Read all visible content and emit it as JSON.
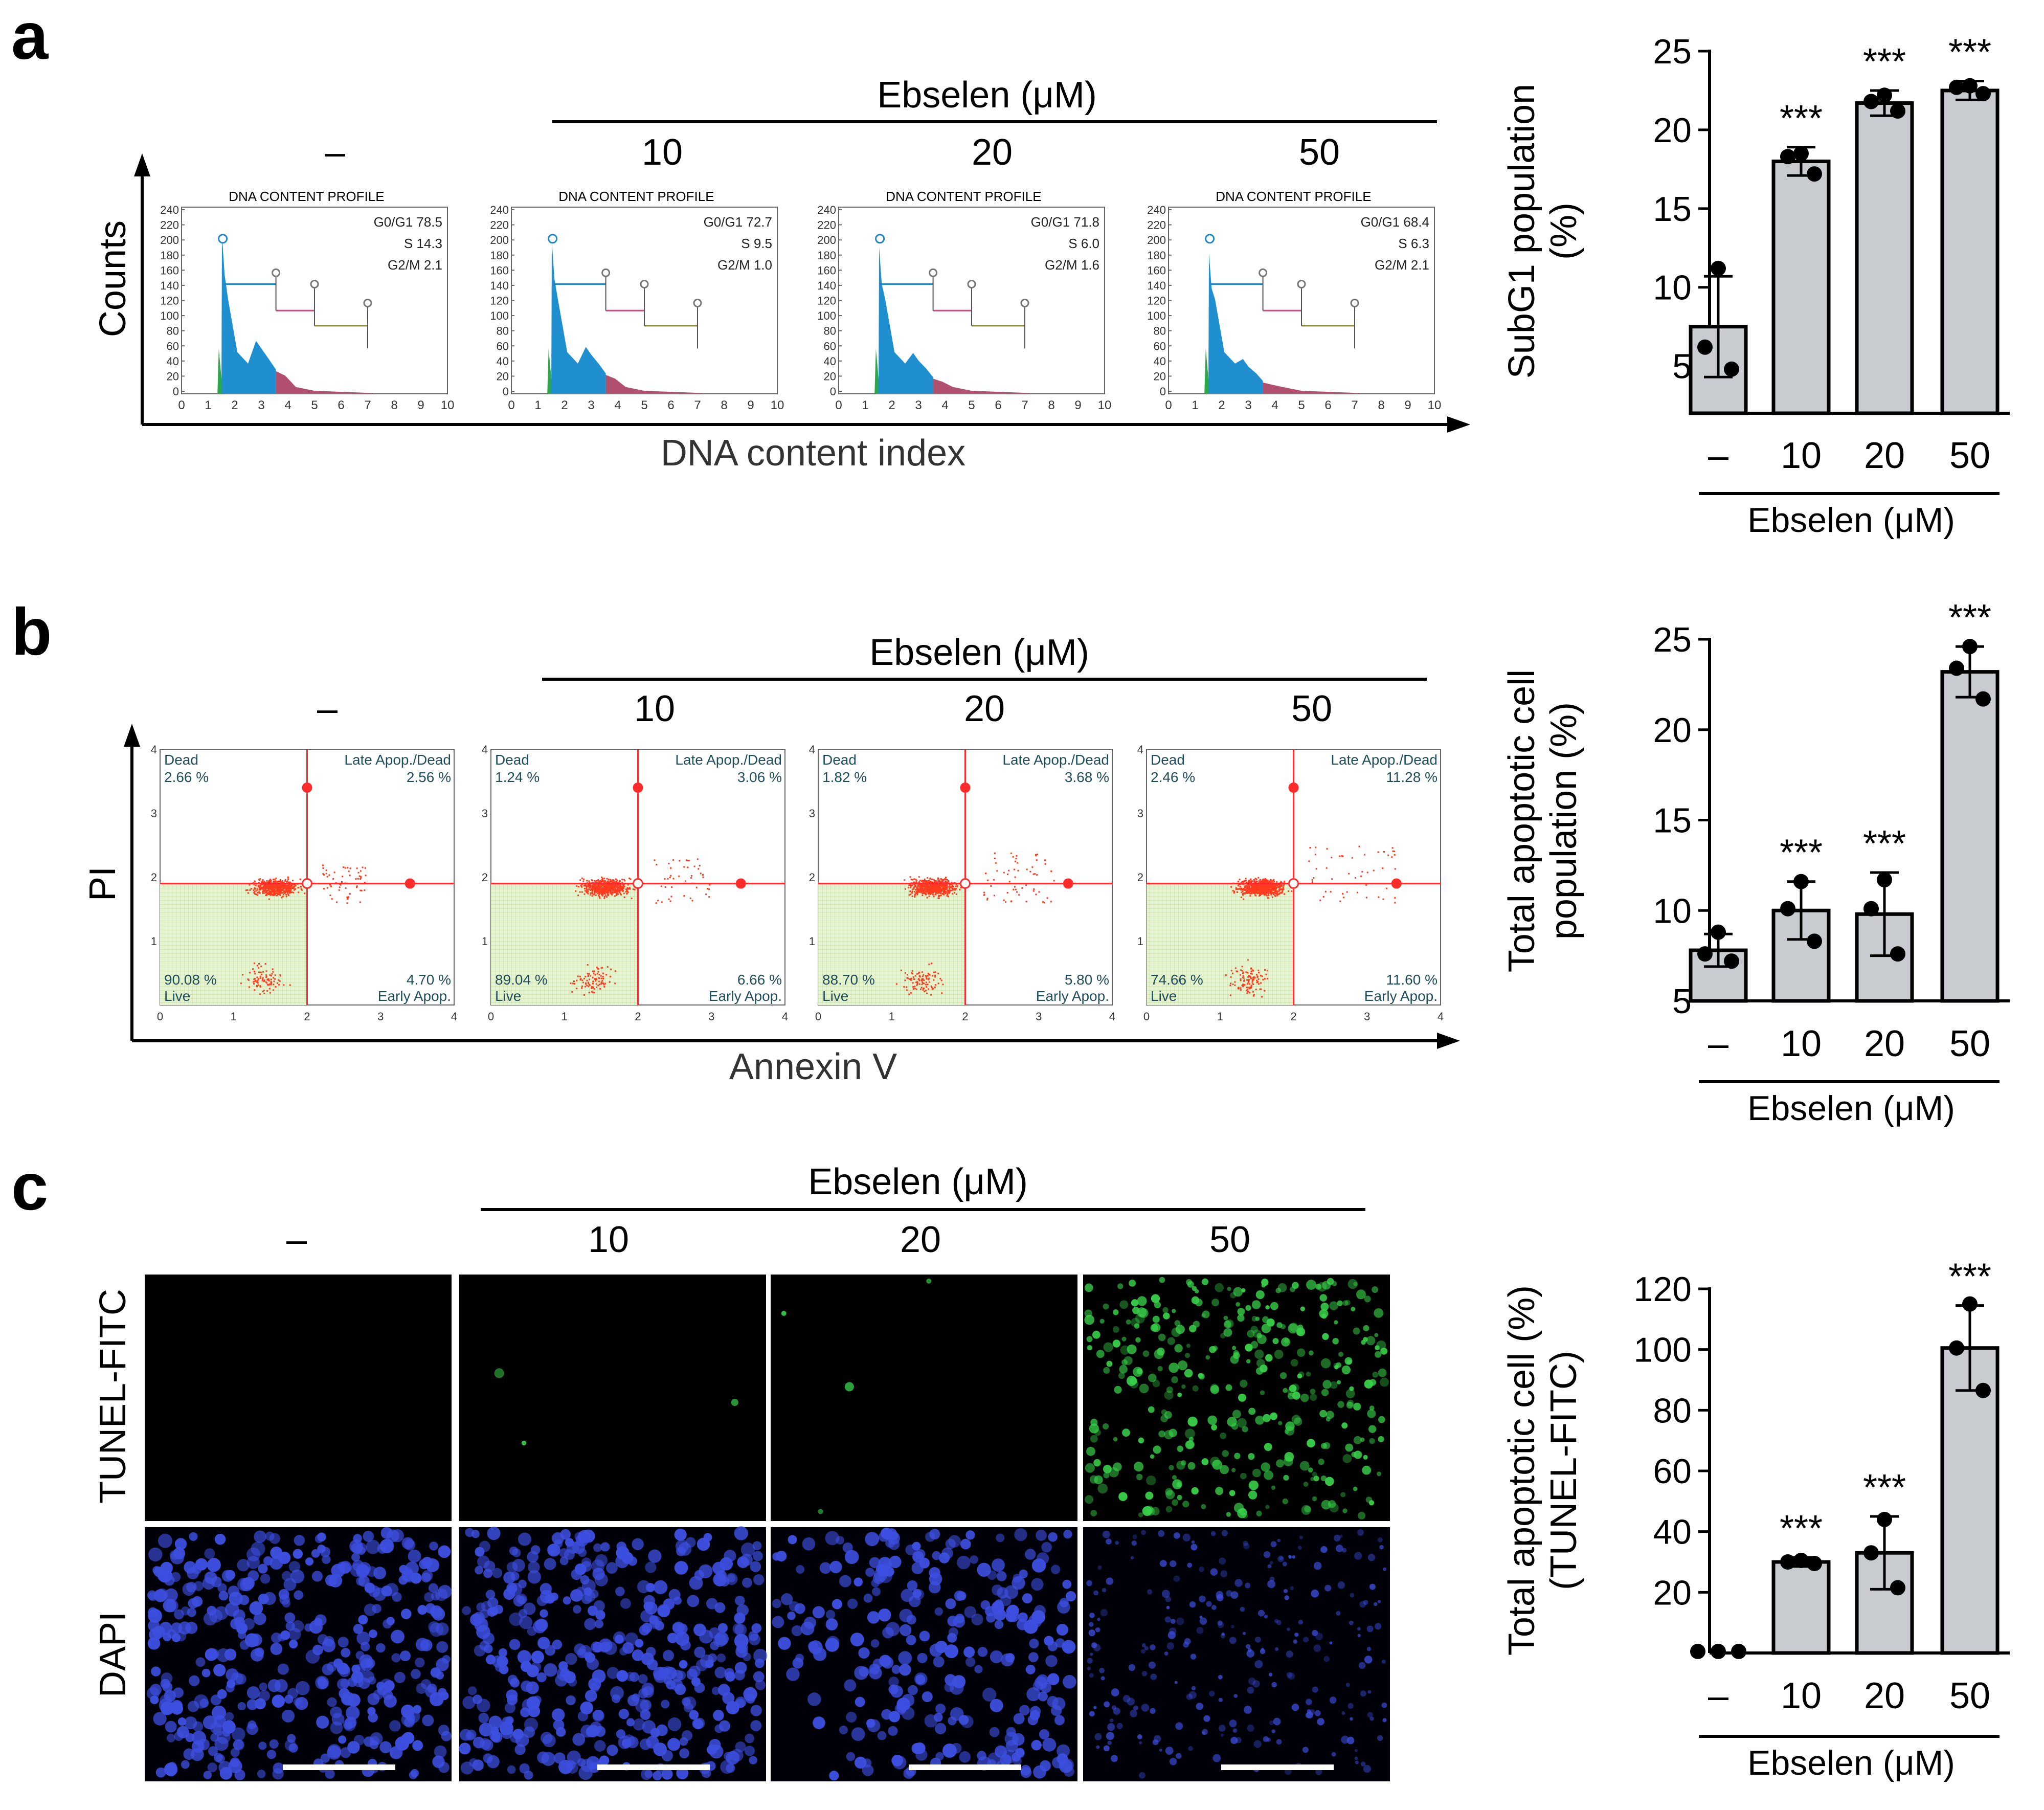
{
  "colors": {
    "bar_fill": "#c8ccd1",
    "axis": "#000000",
    "g1_blue": "#1f8fcf",
    "sub_green": "#2aa84a",
    "g2_pink": "#b0506e",
    "scatter_red": "#ff3b1f",
    "live_green": "#d8ecbc",
    "micro_green": "#39d24a",
    "micro_blue": "#3d4fe0"
  },
  "panels": {
    "a": {
      "letter": "a",
      "treatment_header": "Ebselen (μM)",
      "group_labels": [
        "–",
        "10",
        "20",
        "50"
      ],
      "y_axis_label": "Counts",
      "x_axis_label": "DNA content index",
      "profile_title": "DNA CONTENT PROFILE",
      "y_ticks": [
        "240",
        "220",
        "200",
        "180",
        "160",
        "140",
        "120",
        "100",
        "80",
        "60",
        "40",
        "20",
        "0"
      ],
      "x_ticks": [
        "0",
        "1",
        "2",
        "3",
        "4",
        "5",
        "6",
        "7",
        "8",
        "9",
        "10"
      ],
      "phase_labels": [
        "G0/G1",
        "S",
        "G2/M"
      ],
      "phase_values": [
        [
          "78.5",
          "14.3",
          "2.1"
        ],
        [
          "72.7",
          "9.5",
          "1.0"
        ],
        [
          "71.8",
          "6.0",
          "1.6"
        ],
        [
          "68.4",
          "6.3",
          "2.1"
        ]
      ]
    },
    "b": {
      "letter": "b",
      "treatment_header": "Ebselen (μM)",
      "group_labels": [
        "–",
        "10",
        "20",
        "50"
      ],
      "y_axis_label": "PI",
      "x_axis_label": "Annexin V",
      "quadrant_names": [
        "Dead",
        "Late Apop./Dead",
        "Live",
        "Early Apop."
      ],
      "ticks": [
        "0",
        "1",
        "2",
        "3",
        "4"
      ],
      "quadrants": [
        {
          "dead": "2.66 %",
          "late": "2.56 %",
          "live": "90.08 %",
          "early": "4.70 %"
        },
        {
          "dead": "1.24 %",
          "late": "3.06 %",
          "live": "89.04 %",
          "early": "6.66 %"
        },
        {
          "dead": "1.82 %",
          "late": "3.68 %",
          "live": "88.70 %",
          "early": "5.80 %"
        },
        {
          "dead": "2.46 %",
          "late": "11.28 %",
          "live": "74.66 %",
          "early": "11.60 %"
        }
      ]
    },
    "c": {
      "letter": "c",
      "treatment_header": "Ebselen (μM)",
      "group_labels": [
        "–",
        "10",
        "20",
        "50"
      ],
      "row_labels": [
        "TUNEL-FITC",
        "DAPI"
      ]
    }
  },
  "chart_data": [
    {
      "type": "bar",
      "title": "",
      "ylabel": "SubG1 population (%)",
      "xlabel": "Ebselen (μM)",
      "categories": [
        "–",
        "10",
        "20",
        "50"
      ],
      "values": [
        7.5,
        18.0,
        21.7,
        22.5
      ],
      "errors": [
        3.2,
        0.9,
        0.8,
        0.6
      ],
      "points": [
        [
          11.2,
          6.2,
          4.8
        ],
        [
          18.5,
          18.3,
          17.2
        ],
        [
          22.2,
          21.8,
          21.2
        ],
        [
          22.8,
          22.7,
          22.3
        ]
      ],
      "significance": [
        "",
        "***",
        "***",
        "***"
      ],
      "ylim": [
        2,
        25
      ],
      "yticks": [
        "5",
        "10",
        "15",
        "20",
        "25"
      ]
    },
    {
      "type": "bar",
      "title": "",
      "ylabel": "Total apoptotic cell population (%)",
      "xlabel": "Ebselen (μM)",
      "categories": [
        "–",
        "10",
        "20",
        "50"
      ],
      "values": [
        7.8,
        10.0,
        9.8,
        23.2
      ],
      "errors": [
        0.9,
        1.6,
        2.3,
        1.4
      ],
      "points": [
        [
          8.8,
          7.6,
          7.2
        ],
        [
          11.6,
          10.1,
          8.3
        ],
        [
          11.7,
          10.1,
          7.6
        ],
        [
          24.6,
          23.4,
          21.7
        ]
      ],
      "significance": [
        "",
        "***",
        "***",
        "***"
      ],
      "ylim": [
        5,
        25
      ],
      "yticks": [
        "5",
        "10",
        "15",
        "20",
        "25"
      ]
    },
    {
      "type": "bar",
      "title": "",
      "ylabel": "Total apoptotic cell (%) (TUNEL-FITC)",
      "xlabel": "Ebselen (μM)",
      "categories": [
        "–",
        "10",
        "20",
        "50"
      ],
      "values": [
        0.5,
        30.0,
        33.0,
        100.5
      ],
      "errors": [
        0.3,
        1.5,
        12.0,
        14.0
      ],
      "points": [
        [
          0.5,
          0.5,
          0.5
        ],
        [
          30.5,
          30.0,
          29.5
        ],
        [
          44.0,
          33.0,
          21.5
        ],
        [
          115.0,
          100.5,
          86.5
        ]
      ],
      "significance": [
        "",
        "***",
        "***",
        "***"
      ],
      "ylim": [
        0,
        120
      ],
      "yticks": [
        "20",
        "40",
        "60",
        "80",
        "100",
        "120"
      ]
    }
  ]
}
